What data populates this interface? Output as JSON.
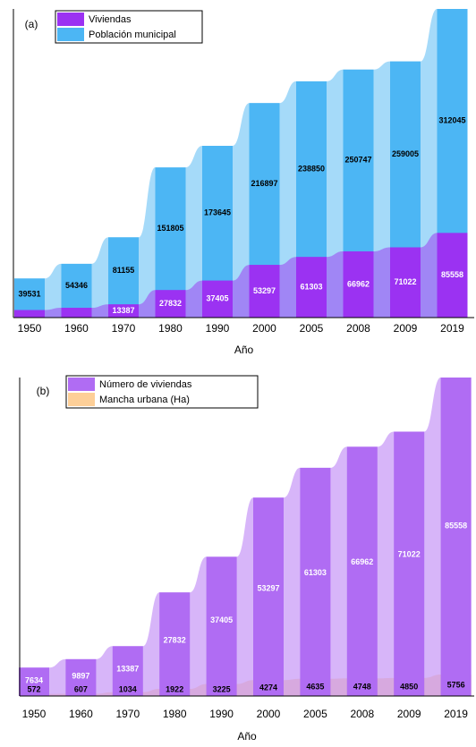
{
  "chart_data": [
    {
      "type": "area",
      "label": "(a)",
      "x_label": "Año",
      "categories": [
        "1950",
        "1960",
        "1970",
        "1980",
        "1990",
        "2000",
        "2005",
        "2008",
        "2009",
        "2019"
      ],
      "series": [
        {
          "name": "Viviendas",
          "color": "#9b32f2",
          "label_color": "#ffffff",
          "values": [
            7634,
            9897,
            13387,
            27832,
            37405,
            53297,
            61303,
            66962,
            71022,
            85558
          ],
          "value_labels": [
            null,
            null,
            "13387",
            "27832",
            "37405",
            "53297",
            "61303",
            "66962",
            "71022",
            "85558"
          ]
        },
        {
          "name": "Población municipal",
          "color": "#4cb6f4",
          "label_color": "#000000",
          "values": [
            39531,
            54346,
            81155,
            151805,
            173645,
            216897,
            238850,
            250747,
            259005,
            312045
          ]
        }
      ]
    },
    {
      "type": "area",
      "label": "(b)",
      "x_label": "Año",
      "categories": [
        "1950",
        "1960",
        "1970",
        "1980",
        "1990",
        "2000",
        "2005",
        "2008",
        "2009",
        "2019"
      ],
      "series": [
        {
          "name": "Número de viviendas",
          "color": "#b06cf3",
          "label_color": "#ffffff",
          "values": [
            7634,
            9897,
            13387,
            27832,
            37405,
            53297,
            61303,
            66962,
            71022,
            85558
          ]
        },
        {
          "name": "Mancha urbana (Ha)",
          "color": "#fdcf98",
          "label_color": "#000000",
          "values": [
            572,
            607,
            1034,
            1922,
            3225,
            4274,
            4635,
            4748,
            4850,
            5756
          ]
        }
      ]
    }
  ]
}
